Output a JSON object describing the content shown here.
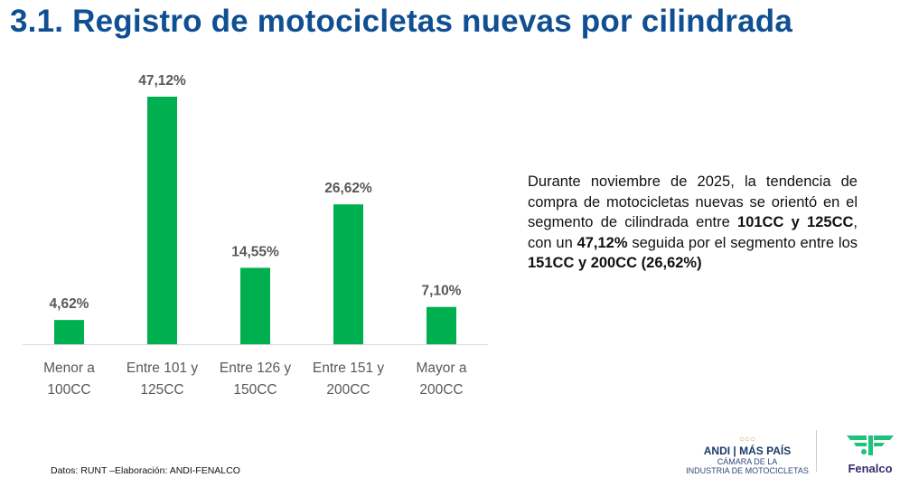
{
  "title": "3.1. Registro de motocicletas nuevas por cilindrada",
  "chart_data": {
    "type": "bar",
    "title": "",
    "categories": [
      "Menor a\n100CC",
      "Entre 101 y\n125CC",
      "Entre 126 y\n150CC",
      "Entre 151 y\n200CC",
      "Mayor a\n200CC"
    ],
    "values": [
      4.62,
      47.12,
      14.55,
      26.62,
      7.1
    ],
    "data_labels": [
      "4,62%",
      "47,12%",
      "14,55%",
      "26,62%",
      "7,10%"
    ],
    "xlabel": "",
    "ylabel": "",
    "ylim": [
      0,
      50
    ],
    "grid": false,
    "bar_color": "#00b050"
  },
  "description": [
    {
      "text": "Durante noviembre de 2025, la tendencia de compra de motocicletas nuevas se orientó en el segmento de cilindrada entre ",
      "bold": false
    },
    {
      "text": "101CC y 125CC",
      "bold": true
    },
    {
      "text": ", con un ",
      "bold": false
    },
    {
      "text": "47,12%",
      "bold": true
    },
    {
      "text": " seguida por el segmento entre los ",
      "bold": false
    },
    {
      "text": "151CC y 200CC (26,62%)",
      "bold": true
    }
  ],
  "source": "Datos: RUNT –Elaboración: ANDI-FENALCO",
  "logos": {
    "andi": "ANDI",
    "mas_pais": "MÁS PAÍS",
    "camara_line1": "CÁMARA DE LA",
    "camara_line2": "INDUSTRIA DE MOTOCICLETAS",
    "fenalco": "Fenalco"
  }
}
